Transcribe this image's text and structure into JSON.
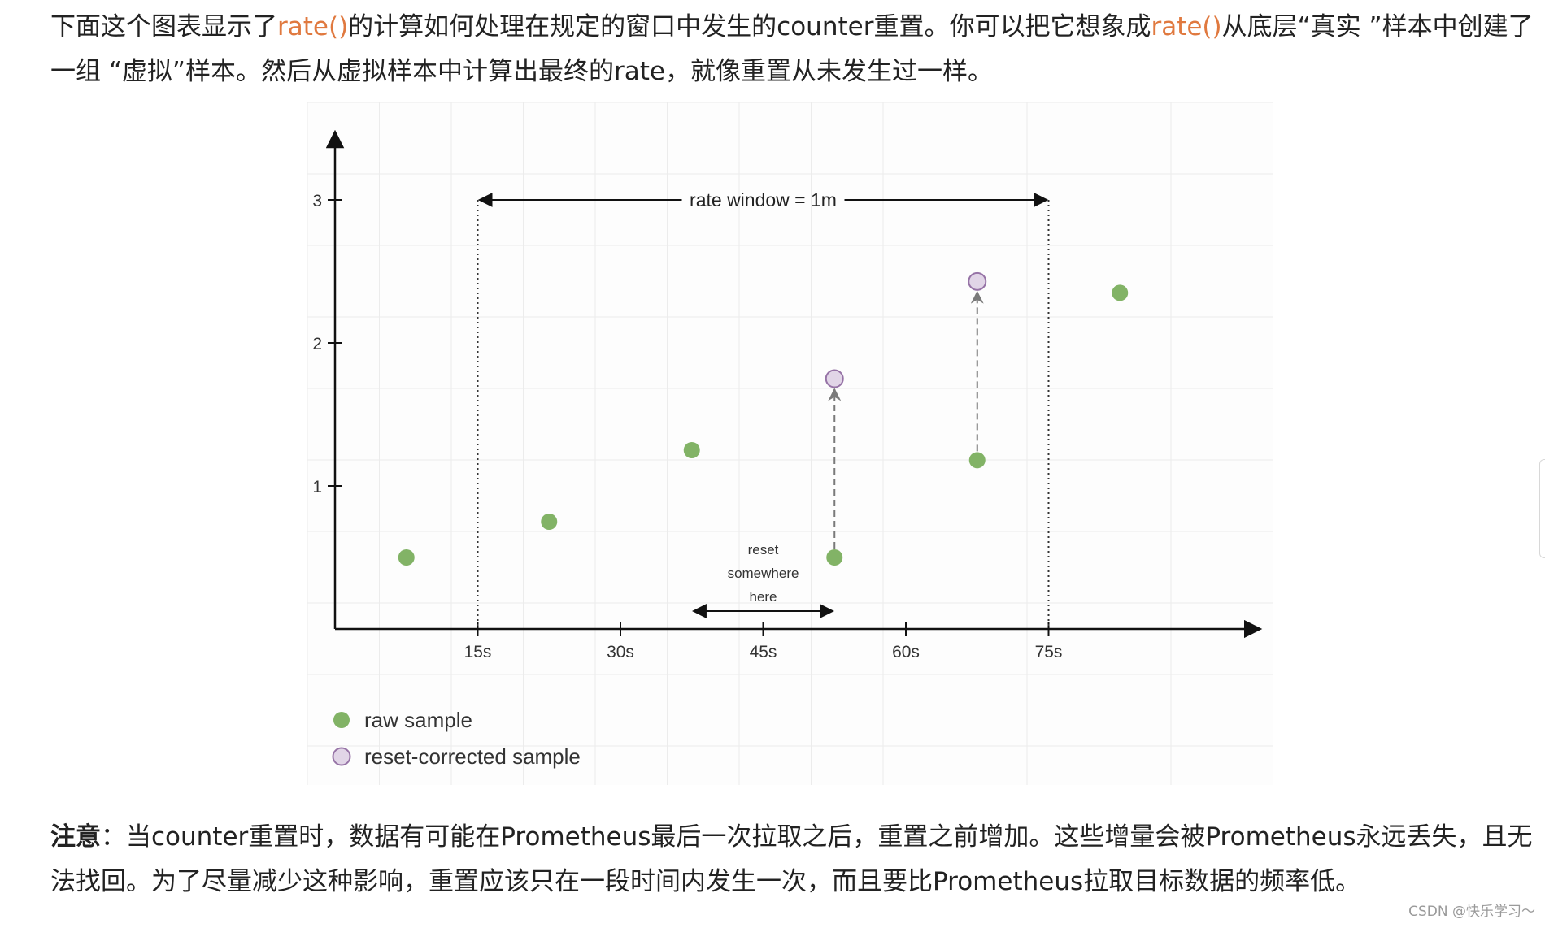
{
  "intro": {
    "p1": "下面这个图表显示了",
    "code1": "rate()",
    "p2": "的计算如何处理在规定的窗口中发生的counter重置。你可以把它想象成",
    "code2": "rate()",
    "p3": "从底层“真实 ”样本中创建了一组 “虚拟”样本。然后从虚拟样本中计算出最终的rate，就像重置从未发生过一样。"
  },
  "note": {
    "label": "注意",
    "text": "：当counter重置时，数据有可能在Prometheus最后一次拉取之后，重置之前增加。这些增量会被Prometheus永远丢失，且无法找回。为了尽量减少这种影响，重置应该只在一段时间内发生一次，而且要比Prometheus拉取目标数据的频率低。"
  },
  "watermark": "CSDN @快乐学习～",
  "chart_data": {
    "type": "scatter",
    "x_ticks": [
      "15s",
      "30s",
      "45s",
      "60s",
      "75s"
    ],
    "y_ticks": [
      "1",
      "2",
      "3"
    ],
    "xlim": [
      0,
      97
    ],
    "ylim": [
      0,
      3.4
    ],
    "series": [
      {
        "name": "raw sample",
        "color": "#82b366",
        "points": [
          {
            "x": 7.5,
            "y": 0.5
          },
          {
            "x": 22.5,
            "y": 0.75
          },
          {
            "x": 37.5,
            "y": 1.25
          },
          {
            "x": 52.5,
            "y": 0.5
          },
          {
            "x": 67.5,
            "y": 1.18
          },
          {
            "x": 82.5,
            "y": 2.35
          }
        ]
      },
      {
        "name": "reset-corrected sample",
        "color": "#e1d5e7",
        "stroke": "#9673a6",
        "points": [
          {
            "x": 52.5,
            "y": 1.75
          },
          {
            "x": 67.5,
            "y": 2.43
          }
        ]
      }
    ],
    "corrections": [
      {
        "x": 52.5,
        "from": 0.5,
        "to": 1.75
      },
      {
        "x": 67.5,
        "from": 1.18,
        "to": 2.43
      }
    ],
    "window": {
      "label": "rate window = 1m",
      "start": 15,
      "end": 75,
      "y": 3.0
    },
    "reset_annotation": {
      "lines": [
        "reset",
        "somewhere",
        "here"
      ],
      "start": 37.5,
      "end": 52.5
    },
    "legend_position": "bottom-left",
    "grid": true
  }
}
